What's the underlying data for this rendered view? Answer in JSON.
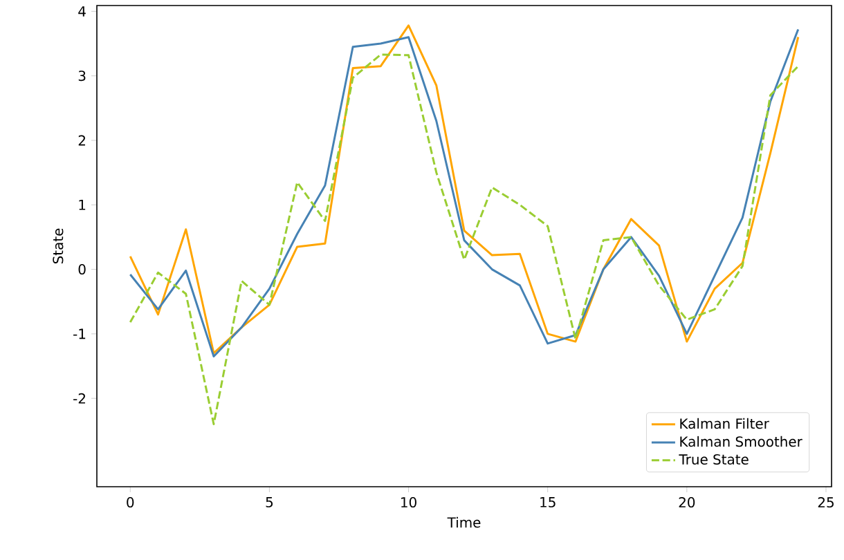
{
  "chart_data": {
    "type": "line",
    "xlabel": "Time",
    "ylabel": "State",
    "x": [
      0,
      1,
      2,
      3,
      4,
      5,
      6,
      7,
      8,
      9,
      10,
      11,
      12,
      13,
      14,
      15,
      16,
      17,
      18,
      19,
      20,
      21,
      22,
      23,
      24
    ],
    "series": [
      {
        "name": "Kalman Filter",
        "color": "#ffa500",
        "line_style": "solid",
        "values": [
          0.2,
          -0.7,
          0.62,
          -1.3,
          -0.9,
          -0.55,
          0.35,
          0.4,
          3.12,
          3.15,
          3.78,
          2.85,
          0.6,
          0.22,
          0.24,
          -1.0,
          -1.12,
          0.0,
          0.78,
          0.37,
          -1.12,
          -0.3,
          0.1,
          1.8,
          3.6
        ]
      },
      {
        "name": "Kalman Smoother",
        "color": "#4682b4",
        "line_style": "solid",
        "values": [
          -0.08,
          -0.62,
          -0.02,
          -1.35,
          -0.9,
          -0.3,
          0.55,
          1.3,
          3.45,
          3.5,
          3.6,
          2.3,
          0.45,
          0.0,
          -0.25,
          -1.15,
          -1.02,
          0.0,
          0.5,
          -0.1,
          -1.0,
          -0.1,
          0.8,
          2.6,
          3.72
        ]
      },
      {
        "name": "True State",
        "color": "#9acd32",
        "line_style": "dashed",
        "values": [
          -0.82,
          -0.05,
          -0.38,
          -2.4,
          -0.18,
          -0.55,
          1.35,
          0.75,
          2.97,
          3.33,
          3.32,
          1.5,
          0.15,
          1.27,
          1.0,
          0.67,
          -1.08,
          0.45,
          0.5,
          -0.25,
          -0.78,
          -0.62,
          0.05,
          2.7,
          3.15
        ]
      }
    ],
    "xlim": [
      -1.2,
      25.2
    ],
    "ylim": [
      -3.37,
      4.09
    ],
    "xticks": [
      0,
      5,
      10,
      15,
      20,
      25
    ],
    "yticks": [
      -2,
      -1,
      0,
      1,
      2,
      3,
      4
    ],
    "legend": "bottom right",
    "grid": false,
    "marker": "none"
  }
}
